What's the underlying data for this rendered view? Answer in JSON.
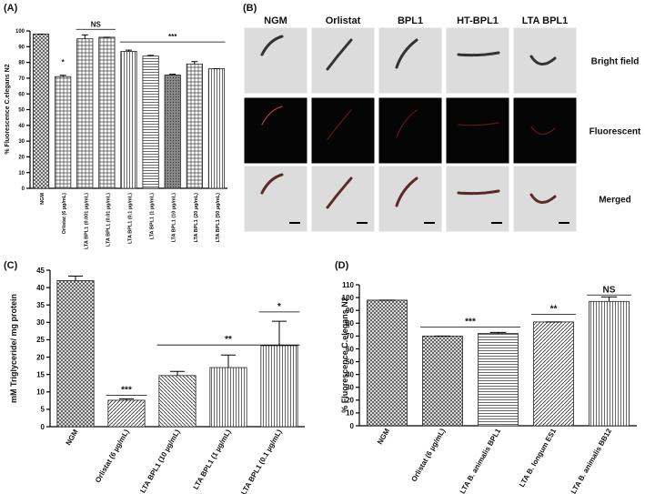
{
  "chart_data": [
    {
      "type": "bar",
      "panel_label": "(A)",
      "y_label": "% Fluorescence C.elegans N2",
      "categories": [
        "NGM",
        "Orlistat (6 µg/mL)",
        "LTA BPL1 (0.001 µg/mL)",
        "LTA BPL1 (0.01 µg/mL)",
        "LTA BPL1 (0.1 µg/mL)",
        "LTA BPL1 (1 µg/mL)",
        "LTA BPL1 (10 µg/mL)",
        "LTA BPL1 (20 µg/mL)",
        "LTA BPL1 (50 µg/mL)"
      ],
      "values": [
        98,
        71,
        95,
        96,
        87,
        84,
        72,
        79,
        76
      ],
      "errors": [
        0,
        0.8,
        2.5,
        0,
        0.8,
        0.5,
        0.5,
        1.5,
        0
      ],
      "annotations": [
        "*",
        "NS",
        "***"
      ],
      "ylim": [
        0,
        100
      ],
      "yticks": [
        0,
        10,
        20,
        30,
        40,
        50,
        60,
        70,
        80,
        90,
        100
      ]
    },
    {
      "type": "bar",
      "panel_label": "(C)",
      "y_label": "mM Triglyceride/ mg protein",
      "categories": [
        "NGM",
        "Orlistat (6 µg/mL)",
        "LTA BPL1 (10 µg/mL)",
        "LTA BPL1 (1 µg/mL)",
        "LTA BPL1 (0.1 µg/mL)"
      ],
      "values": [
        42,
        7.6,
        14.7,
        17,
        23.3
      ],
      "errors": [
        1.3,
        0.4,
        1.2,
        3.6,
        7
      ],
      "annotations": [
        "***",
        "**",
        "*"
      ],
      "ylim": [
        0,
        45
      ],
      "yticks": [
        0,
        5,
        10,
        15,
        20,
        25,
        30,
        35,
        40,
        45
      ]
    },
    {
      "type": "bar",
      "panel_label": "(D)",
      "y_label": "% Fluorescence C.elegans N2",
      "categories": [
        "NGM",
        "Orlistat (6 µg/mL)",
        "LTA B. animalis BPL1",
        "LTA B. longum ES1",
        "LTA B. animalis BB12"
      ],
      "values": [
        98,
        70,
        72,
        81,
        97
      ],
      "errors": [
        0,
        0,
        0.8,
        0,
        3.5
      ],
      "annotations": [
        "***",
        "**",
        "NS"
      ],
      "ylim": [
        0,
        110
      ],
      "yticks": [
        0,
        10,
        20,
        30,
        40,
        50,
        60,
        70,
        80,
        90,
        100,
        110
      ]
    }
  ],
  "image_panel": {
    "panel_label": "(B)",
    "columns": [
      "NGM",
      "Orlistat",
      "BPL1",
      "HT-BPL1",
      "LTA BPL1"
    ],
    "rows": [
      "Bright field",
      "Fluorescent",
      "Merged"
    ]
  }
}
